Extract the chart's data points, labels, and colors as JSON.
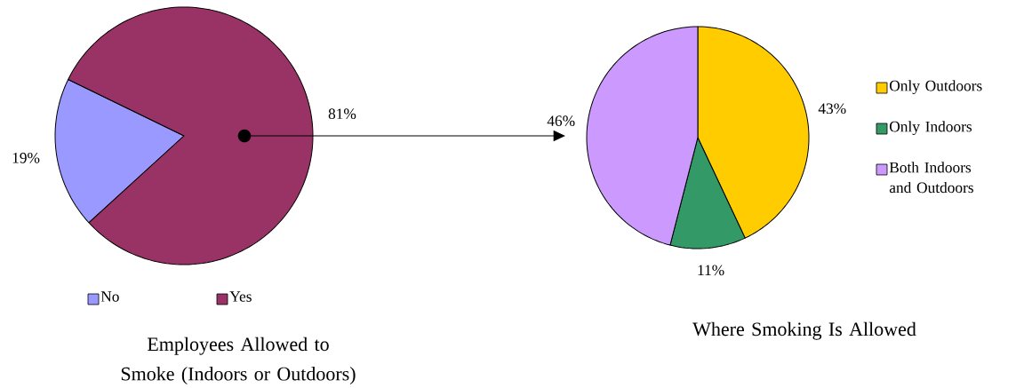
{
  "chart_data": [
    {
      "type": "pie",
      "title": "Employees Allowed to Smoke (Indoors or Outdoors)",
      "categories": [
        "No",
        "Yes"
      ],
      "values": [
        19,
        81
      ],
      "colors": [
        "#9999ff",
        "#993366"
      ],
      "value_labels": [
        "19%",
        "81%"
      ],
      "legend": "bottom"
    },
    {
      "type": "pie",
      "title": "Where Smoking Is Allowed",
      "categories": [
        "Only Outdoors",
        "Only Indoors",
        "Both Indoors and Outdoors"
      ],
      "values": [
        43,
        11,
        46
      ],
      "colors": [
        "#ffcc00",
        "#339966",
        "#cc99ff"
      ],
      "value_labels": [
        "43%",
        "11%",
        "46%"
      ],
      "legend": "right"
    }
  ]
}
